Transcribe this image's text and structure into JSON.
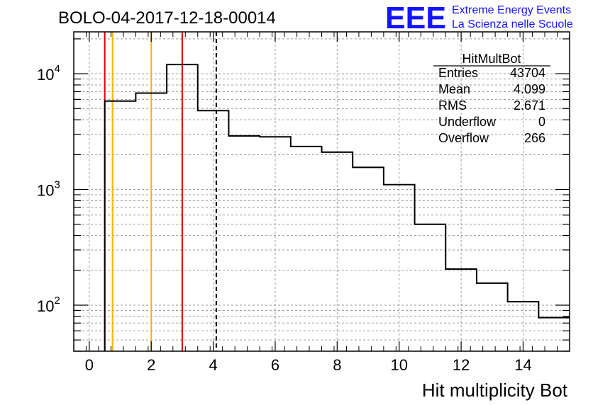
{
  "title": "BOLO-04-2017-12-18-00014",
  "logo": {
    "text": "EEE",
    "line1": "Extreme Energy Events",
    "line2": "La Scienza nelle Scuole",
    "color": "#1414ff"
  },
  "stats": {
    "name": "HitMultBot",
    "rows": [
      {
        "label": "Entries",
        "value": "43704"
      },
      {
        "label": "Mean",
        "value": "4.099"
      },
      {
        "label": "RMS",
        "value": "2.671"
      },
      {
        "label": "Underflow",
        "value": "0"
      },
      {
        "label": "Overflow",
        "value": "266"
      }
    ]
  },
  "chart_data": {
    "type": "histogram",
    "title": "BOLO-04-2017-12-18-00014",
    "xlabel": "Hit multiplicity Bot",
    "ylabel": "",
    "xlim": [
      -0.5,
      15.5
    ],
    "ylim": [
      40,
      23000
    ],
    "y_scale": "log",
    "grid": true,
    "x_ticks": [
      0,
      2,
      4,
      6,
      8,
      10,
      12,
      14
    ],
    "y_ticks": [
      {
        "value": 100,
        "base": "10",
        "exp": "2"
      },
      {
        "value": 1000,
        "base": "10",
        "exp": "3"
      },
      {
        "value": 10000,
        "base": "10",
        "exp": "4"
      }
    ],
    "bins": {
      "edges": [
        0.5,
        1.5,
        2.5,
        3.5,
        4.5,
        5.5,
        6.5,
        7.5,
        8.5,
        9.5,
        10.5,
        11.5,
        12.5,
        13.5,
        14.5,
        15.5
      ],
      "values": [
        5800,
        6800,
        12000,
        4800,
        2900,
        2850,
        2350,
        2100,
        1550,
        1100,
        500,
        205,
        155,
        107,
        78
      ]
    },
    "vertical_lines": [
      {
        "x": 0.5,
        "color": "#e00000",
        "style": "solid"
      },
      {
        "x": 0.75,
        "color": "#ffb000",
        "style": "solid"
      },
      {
        "x": 2.0,
        "color": "#ffb000",
        "style": "solid"
      },
      {
        "x": 3.0,
        "color": "#e00000",
        "style": "solid"
      },
      {
        "x": 4.099,
        "color": "#000000",
        "style": "dashed"
      }
    ],
    "stats_box_position": "top-right"
  }
}
